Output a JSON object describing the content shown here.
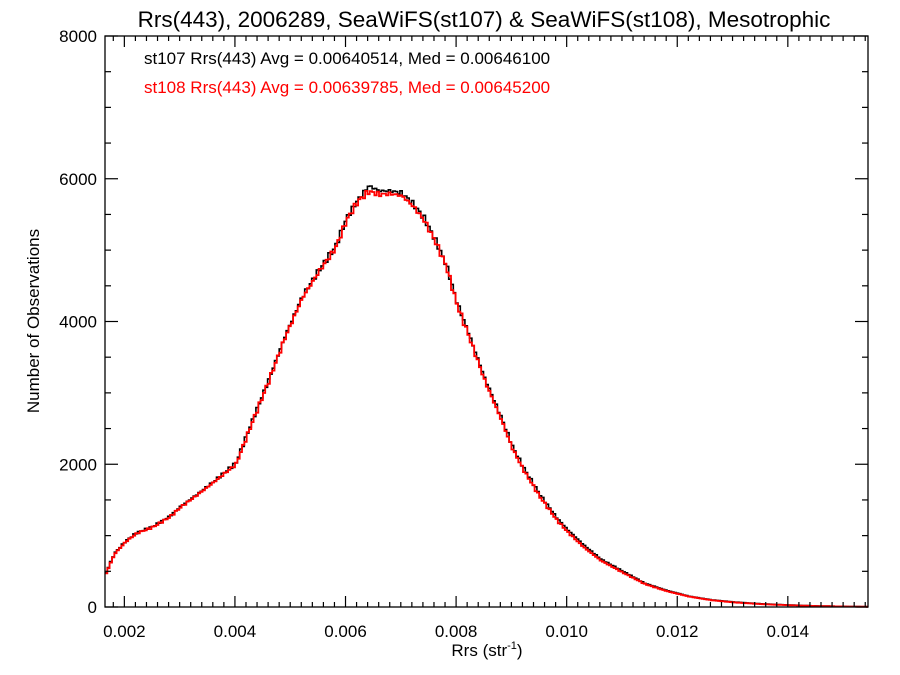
{
  "chart_data": {
    "type": "line",
    "step": true,
    "title": "Rrs(443), 2006289, SeaWiFS(st107) & SeaWiFS(st108), Mesotrophic",
    "xlabel_base": "Rrs (str",
    "xlabel_sup": "-1",
    "xlabel_tail": ")",
    "ylabel": "Number of Observations",
    "xlim": [
      0.00165,
      0.01545
    ],
    "ylim": [
      0,
      8000
    ],
    "x_ticks": [
      "0.002",
      "0.004",
      "0.006",
      "0.008",
      "0.010",
      "0.012",
      "0.014"
    ],
    "x_tick_values": [
      0.002,
      0.004,
      0.006,
      0.008,
      0.01,
      0.012,
      0.014
    ],
    "y_ticks": [
      "0",
      "2000",
      "4000",
      "6000",
      "8000"
    ],
    "y_tick_values": [
      0,
      2000,
      4000,
      6000,
      8000
    ],
    "grid": false,
    "legend_position": "top-left",
    "series": [
      {
        "name": "st107",
        "color": "#000000",
        "stats_text": "st107 Rrs(443) Avg = 0.00640514, Med = 0.00646100",
        "x": [
          0.00165,
          0.0018,
          0.002,
          0.0022,
          0.0025,
          0.0028,
          0.003,
          0.0033,
          0.0036,
          0.004,
          0.0043,
          0.0046,
          0.0049,
          0.0052,
          0.0055,
          0.0058,
          0.006,
          0.0062,
          0.0064,
          0.0066,
          0.0068,
          0.007,
          0.0072,
          0.0074,
          0.0076,
          0.0078,
          0.008,
          0.0082,
          0.0085,
          0.0088,
          0.009,
          0.0092,
          0.0095,
          0.0098,
          0.01,
          0.0103,
          0.0106,
          0.011,
          0.0114,
          0.0118,
          0.0122,
          0.0126,
          0.013,
          0.0135,
          0.014,
          0.0145,
          0.015,
          0.01545
        ],
        "y": [
          480,
          750,
          920,
          1040,
          1130,
          1270,
          1410,
          1580,
          1760,
          2020,
          2620,
          3200,
          3820,
          4350,
          4720,
          5050,
          5450,
          5700,
          5900,
          5830,
          5830,
          5800,
          5650,
          5450,
          5150,
          4800,
          4260,
          3850,
          3200,
          2650,
          2250,
          1950,
          1570,
          1250,
          1080,
          860,
          670,
          500,
          330,
          230,
          150,
          100,
          70,
          45,
          28,
          15,
          8,
          3
        ]
      },
      {
        "name": "st108",
        "color": "#ff0000",
        "stats_text": "st108 Rrs(443) Avg = 0.00639785, Med = 0.00645200",
        "x": [
          0.00165,
          0.0018,
          0.002,
          0.0022,
          0.0025,
          0.0028,
          0.003,
          0.0033,
          0.0036,
          0.004,
          0.0043,
          0.0046,
          0.0049,
          0.0052,
          0.0055,
          0.0058,
          0.006,
          0.0062,
          0.0064,
          0.0066,
          0.0068,
          0.007,
          0.0072,
          0.0074,
          0.0076,
          0.0078,
          0.008,
          0.0082,
          0.0085,
          0.0088,
          0.009,
          0.0092,
          0.0095,
          0.0098,
          0.01,
          0.0103,
          0.0106,
          0.011,
          0.0114,
          0.0118,
          0.0122,
          0.0126,
          0.013,
          0.0135,
          0.014,
          0.0145,
          0.015,
          0.01545
        ],
        "y": [
          470,
          740,
          910,
          1030,
          1120,
          1260,
          1400,
          1570,
          1750,
          2000,
          2600,
          3180,
          3800,
          4330,
          4700,
          5030,
          5420,
          5680,
          5820,
          5780,
          5790,
          5760,
          5620,
          5420,
          5130,
          4780,
          4230,
          3820,
          3170,
          2620,
          2220,
          1920,
          1540,
          1220,
          1050,
          830,
          650,
          480,
          320,
          220,
          145,
          95,
          65,
          40,
          25,
          13,
          7,
          3
        ]
      }
    ]
  }
}
